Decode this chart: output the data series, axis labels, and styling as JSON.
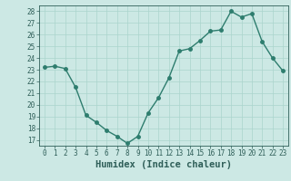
{
  "x": [
    0,
    1,
    2,
    3,
    4,
    5,
    6,
    7,
    8,
    9,
    10,
    11,
    12,
    13,
    14,
    15,
    16,
    17,
    18,
    19,
    20,
    21,
    22,
    23
  ],
  "y": [
    23.2,
    23.3,
    23.1,
    21.5,
    19.1,
    18.5,
    17.8,
    17.3,
    16.7,
    17.3,
    19.3,
    20.6,
    22.3,
    24.6,
    24.8,
    25.5,
    26.3,
    26.4,
    28.0,
    27.5,
    27.8,
    25.4,
    24.0,
    22.9
  ],
  "line_color": "#2e7d6e",
  "marker": "o",
  "markersize": 2.5,
  "linewidth": 1.0,
  "bg_color": "#cce8e4",
  "grid_color": "#aad4cc",
  "xlabel": "Humidex (Indice chaleur)",
  "ylim": [
    16.5,
    28.5
  ],
  "yticks": [
    17,
    18,
    19,
    20,
    21,
    22,
    23,
    24,
    25,
    26,
    27,
    28
  ],
  "xlim": [
    -0.5,
    23.5
  ],
  "xticks": [
    0,
    1,
    2,
    3,
    4,
    5,
    6,
    7,
    8,
    9,
    10,
    11,
    12,
    13,
    14,
    15,
    16,
    17,
    18,
    19,
    20,
    21,
    22,
    23
  ],
  "tick_fontsize": 5.5,
  "xlabel_fontsize": 7.5
}
